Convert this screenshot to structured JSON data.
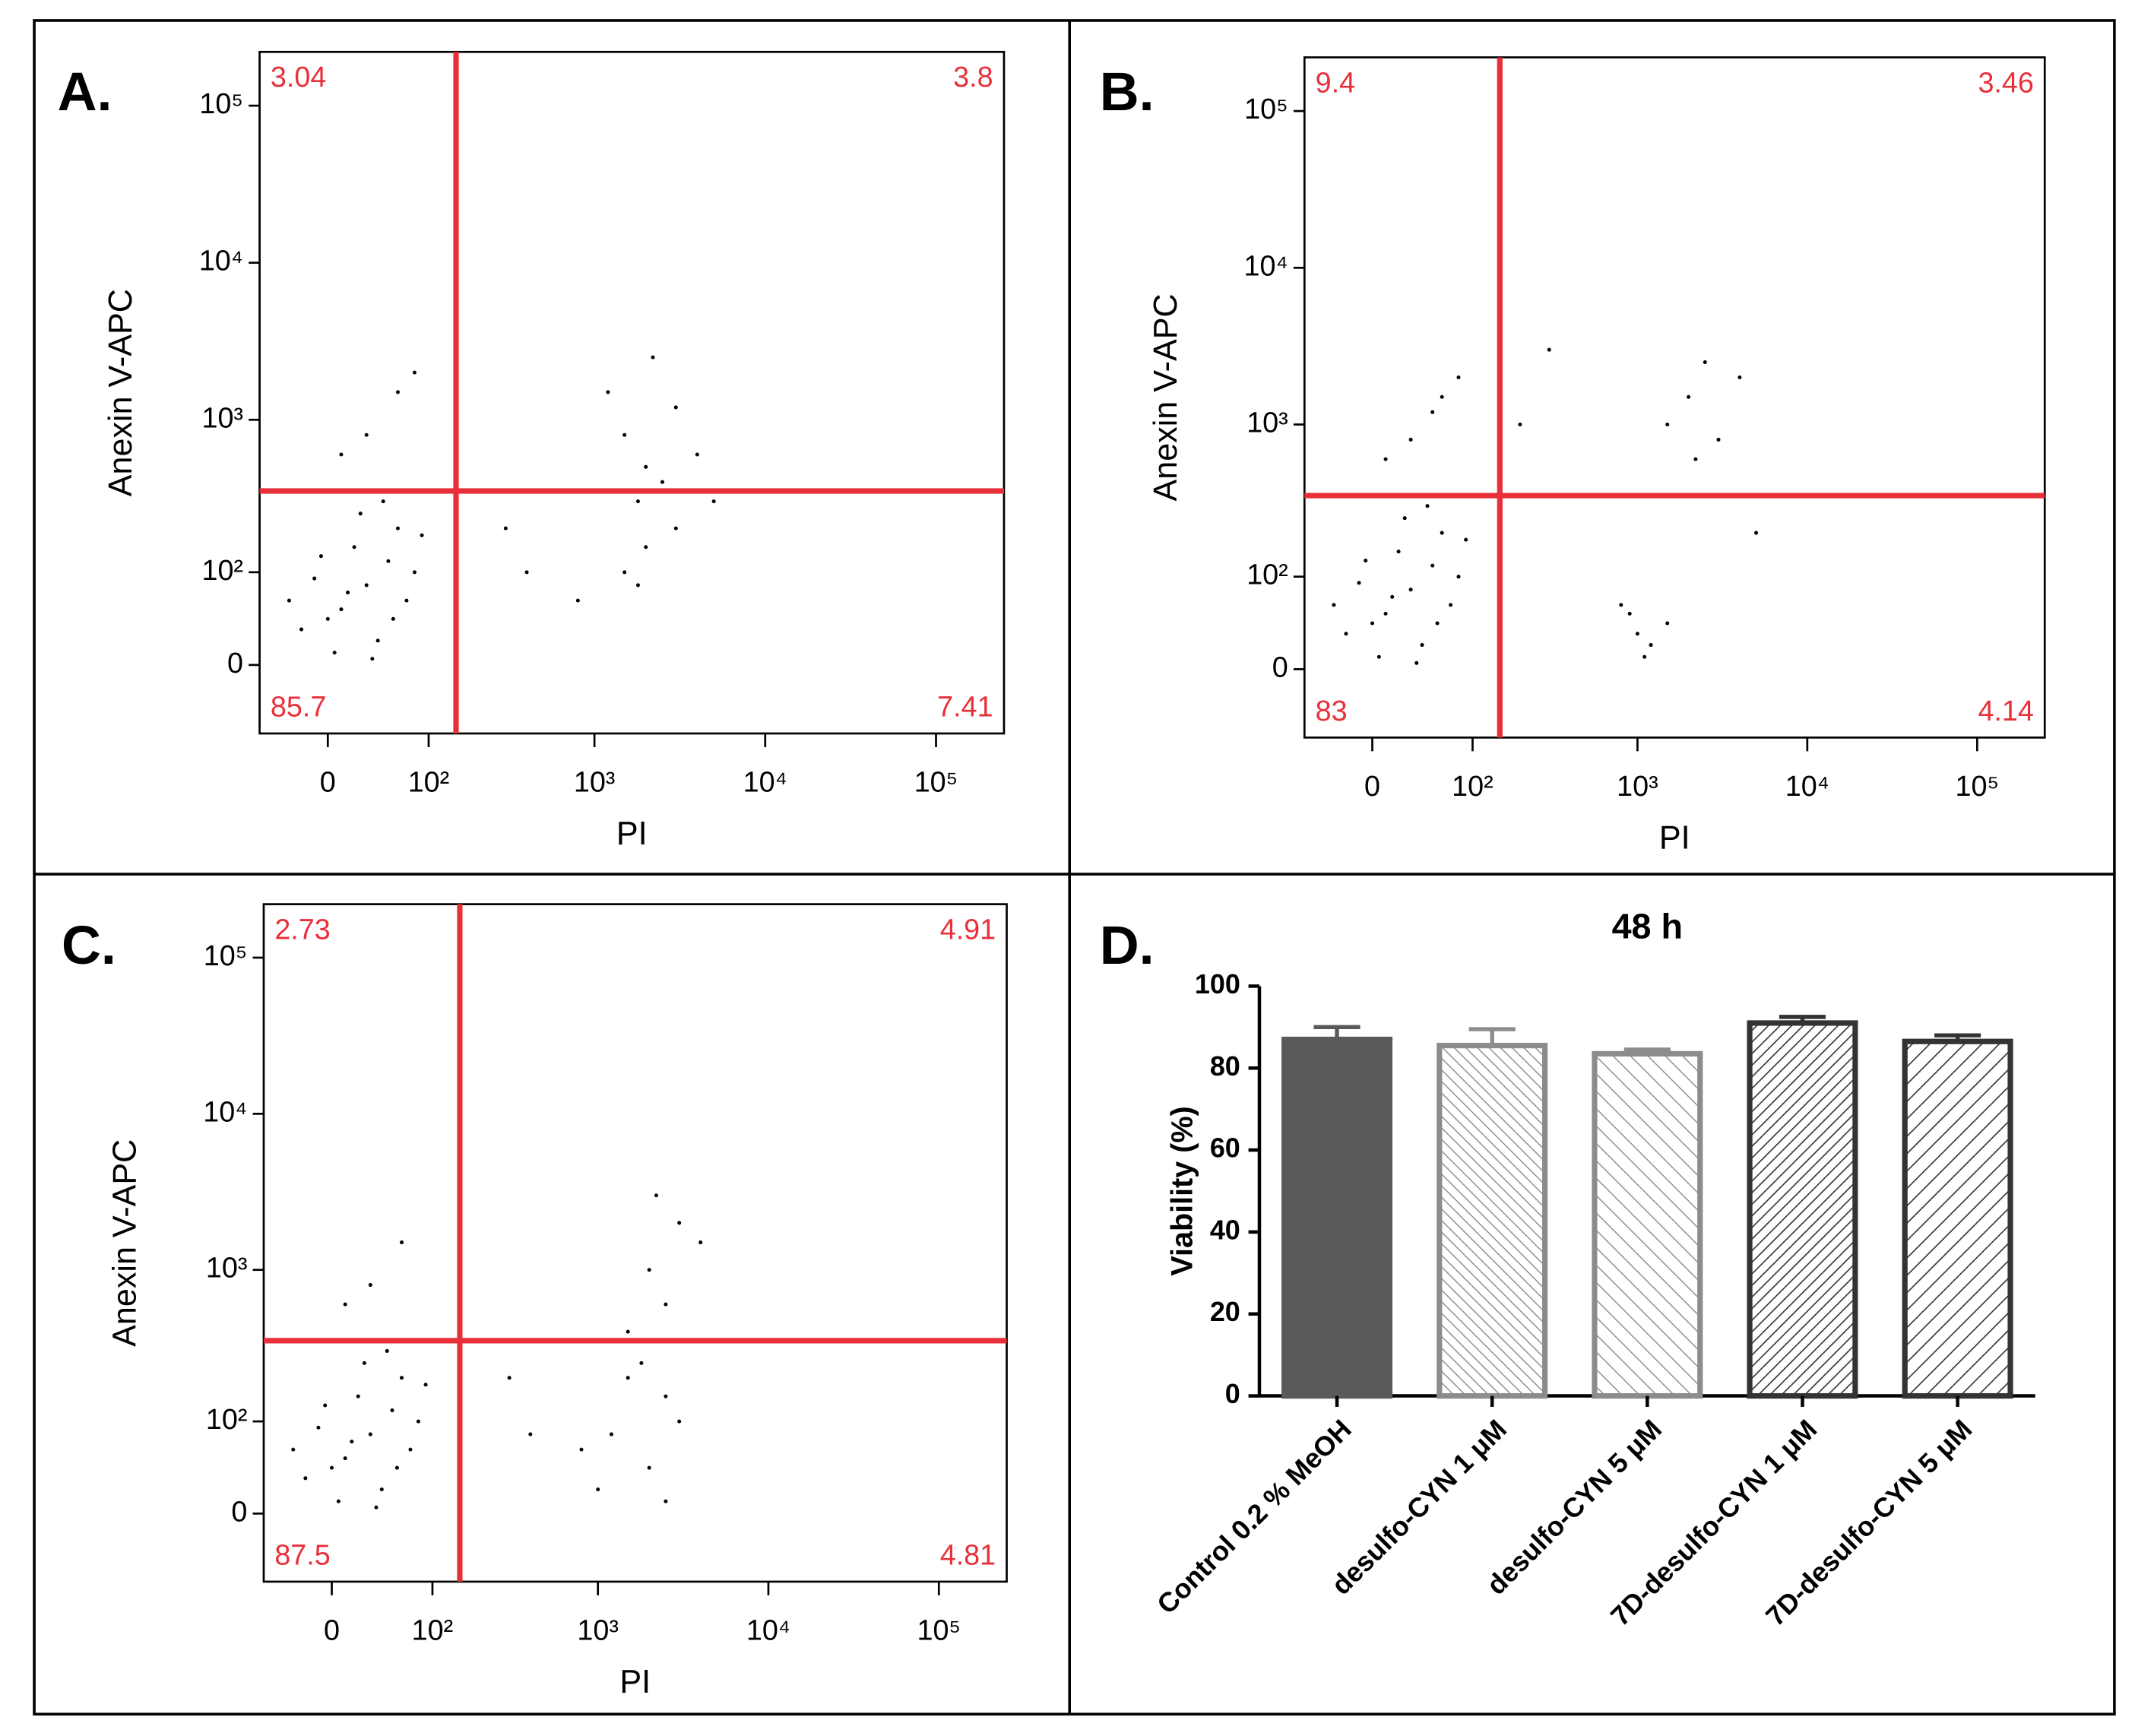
{
  "chart_data": [
    {
      "type": "flow",
      "panel": "A.",
      "xlabel": "PI",
      "ylabel": "Anexin V-APC",
      "xlim": [
        -58,
        250000
      ],
      "ylim": [
        -65,
        220000
      ],
      "xticks": [
        0,
        {
          "value": 100,
          "label": "10²"
        },
        {
          "value": 1000,
          "label": "10³"
        },
        {
          "value": 10000,
          "label": "10⁴"
        },
        {
          "value": 100000,
          "label": "10⁵"
        }
      ],
      "yticks": [
        0,
        {
          "value": 100,
          "label": "10²"
        },
        {
          "value": 1000,
          "label": "10³"
        },
        {
          "value": 10000,
          "label": "10⁴"
        },
        {
          "value": 100000,
          "label": "10⁵"
        }
      ],
      "x_gate": 150,
      "y_gate": 350,
      "quadrant_labels": [
        3.04,
        3.8,
        85.7,
        7.41
      ],
      "color": "#000000",
      "gate_color": "#e8303a",
      "x": [
        10,
        30,
        -20,
        50,
        5,
        70,
        20,
        -10,
        40,
        60,
        0,
        15,
        80,
        -30,
        25,
        45,
        90,
        35,
        -5,
        55,
        2000,
        1500,
        3000,
        2500,
        1800,
        4000,
        1200,
        2200,
        2000,
        1500,
        3000,
        1800,
        800,
        400,
        300,
        5000,
        30,
        60,
        10,
        80
      ],
      "y": [
        50,
        80,
        30,
        120,
        10,
        60,
        150,
        90,
        20,
        200,
        40,
        70,
        100,
        60,
        250,
        300,
        180,
        5,
        130,
        40,
        500,
        800,
        1200,
        400,
        300,
        600,
        1500,
        2500,
        150,
        100,
        200,
        80,
        60,
        100,
        200,
        300,
        800,
        1500,
        600,
        2000
      ]
    },
    {
      "type": "flow",
      "panel": "B.",
      "xlabel": "PI",
      "ylabel": "Anexin V-APC",
      "xlim": [
        -58,
        250000
      ],
      "ylim": [
        -65,
        220000
      ],
      "xticks": [
        0,
        {
          "value": 100,
          "label": "10²"
        },
        {
          "value": 1000,
          "label": "10³"
        },
        {
          "value": 10000,
          "label": "10⁴"
        },
        {
          "value": 100000,
          "label": "10⁵"
        }
      ],
      "yticks": [
        0,
        {
          "value": 100,
          "label": "10²"
        },
        {
          "value": 1000,
          "label": "10³"
        },
        {
          "value": 10000,
          "label": "10⁴"
        },
        {
          "value": 100000,
          "label": "10⁵"
        }
      ],
      "x_gate": 150,
      "y_gate": 350,
      "quadrant_labels": [
        9.4,
        3.46,
        83,
        4.14
      ],
      "color": "#000000",
      "gate_color": "#e8303a",
      "x": [
        10,
        30,
        -20,
        50,
        5,
        70,
        20,
        -10,
        40,
        60,
        0,
        15,
        80,
        -30,
        25,
        45,
        90,
        35,
        -5,
        55,
        30,
        60,
        10,
        80,
        50,
        1000,
        900,
        1200,
        800,
        1500,
        1100,
        2000,
        2500,
        3000,
        1500,
        4000,
        2200,
        300,
        200,
        5000
      ],
      "y": [
        50,
        80,
        30,
        120,
        10,
        60,
        150,
        90,
        20,
        200,
        40,
        70,
        100,
        60,
        250,
        300,
        180,
        5,
        130,
        40,
        800,
        1500,
        600,
        2000,
        1200,
        30,
        50,
        20,
        60,
        40,
        10,
        1500,
        2500,
        800,
        1000,
        2000,
        600,
        3000,
        1000,
        200
      ]
    },
    {
      "type": "flow",
      "panel": "C.",
      "xlabel": "PI",
      "ylabel": "Anexin V-APC",
      "xlim": [
        -58,
        250000
      ],
      "ylim": [
        -65,
        220000
      ],
      "xticks": [
        0,
        {
          "value": 100,
          "label": "10²"
        },
        {
          "value": 1000,
          "label": "10³"
        },
        {
          "value": 10000,
          "label": "10⁴"
        },
        {
          "value": 100000,
          "label": "10⁵"
        }
      ],
      "yticks": [
        0,
        {
          "value": 100,
          "label": "10²"
        },
        {
          "value": 1000,
          "label": "10³"
        },
        {
          "value": 10000,
          "label": "10⁴"
        },
        {
          "value": 100000,
          "label": "10⁵"
        }
      ],
      "x_gate": 150,
      "y_gate": 350,
      "quadrant_labels": [
        2.73,
        4.91,
        87.5,
        4.81
      ],
      "color": "#000000",
      "gate_color": "#e8303a",
      "x": [
        10,
        30,
        -20,
        50,
        5,
        70,
        20,
        -10,
        40,
        60,
        0,
        15,
        80,
        -30,
        25,
        45,
        90,
        35,
        -5,
        55,
        2500,
        2000,
        3000,
        1500,
        2200,
        4000,
        1800,
        2500,
        1200,
        2000,
        3000,
        1500,
        1000,
        800,
        2500,
        400,
        300,
        30,
        60,
        10
      ],
      "y": [
        50,
        80,
        30,
        120,
        10,
        60,
        150,
        90,
        20,
        200,
        40,
        70,
        100,
        60,
        250,
        300,
        180,
        5,
        130,
        40,
        600,
        1000,
        2000,
        400,
        3000,
        1500,
        250,
        150,
        80,
        40,
        100,
        200,
        20,
        60,
        10,
        80,
        200,
        800,
        1500,
        600
      ]
    },
    {
      "type": "bar",
      "panel": "D.",
      "title": "48 h",
      "ylabel": "Viability (%)",
      "categories": [
        "Control 0.2 % MeOH",
        "desulfo-CYN 1 μM",
        "desulfo-CYN 5 μM",
        "7D-desulfo-CYN 1 μM",
        "7D-desulfo-CYN 5 μM"
      ],
      "values": [
        87,
        85.5,
        83.5,
        91,
        86.5
      ],
      "errors": [
        3,
        4,
        1,
        1.5,
        1.5
      ],
      "colors": [
        "#5a5a5a",
        "#8c8c8c",
        "#8c8c8c",
        "#333333",
        "#333333"
      ],
      "ylim": [
        0,
        100
      ],
      "yticks": [
        0,
        20,
        40,
        60,
        80,
        100
      ]
    }
  ]
}
